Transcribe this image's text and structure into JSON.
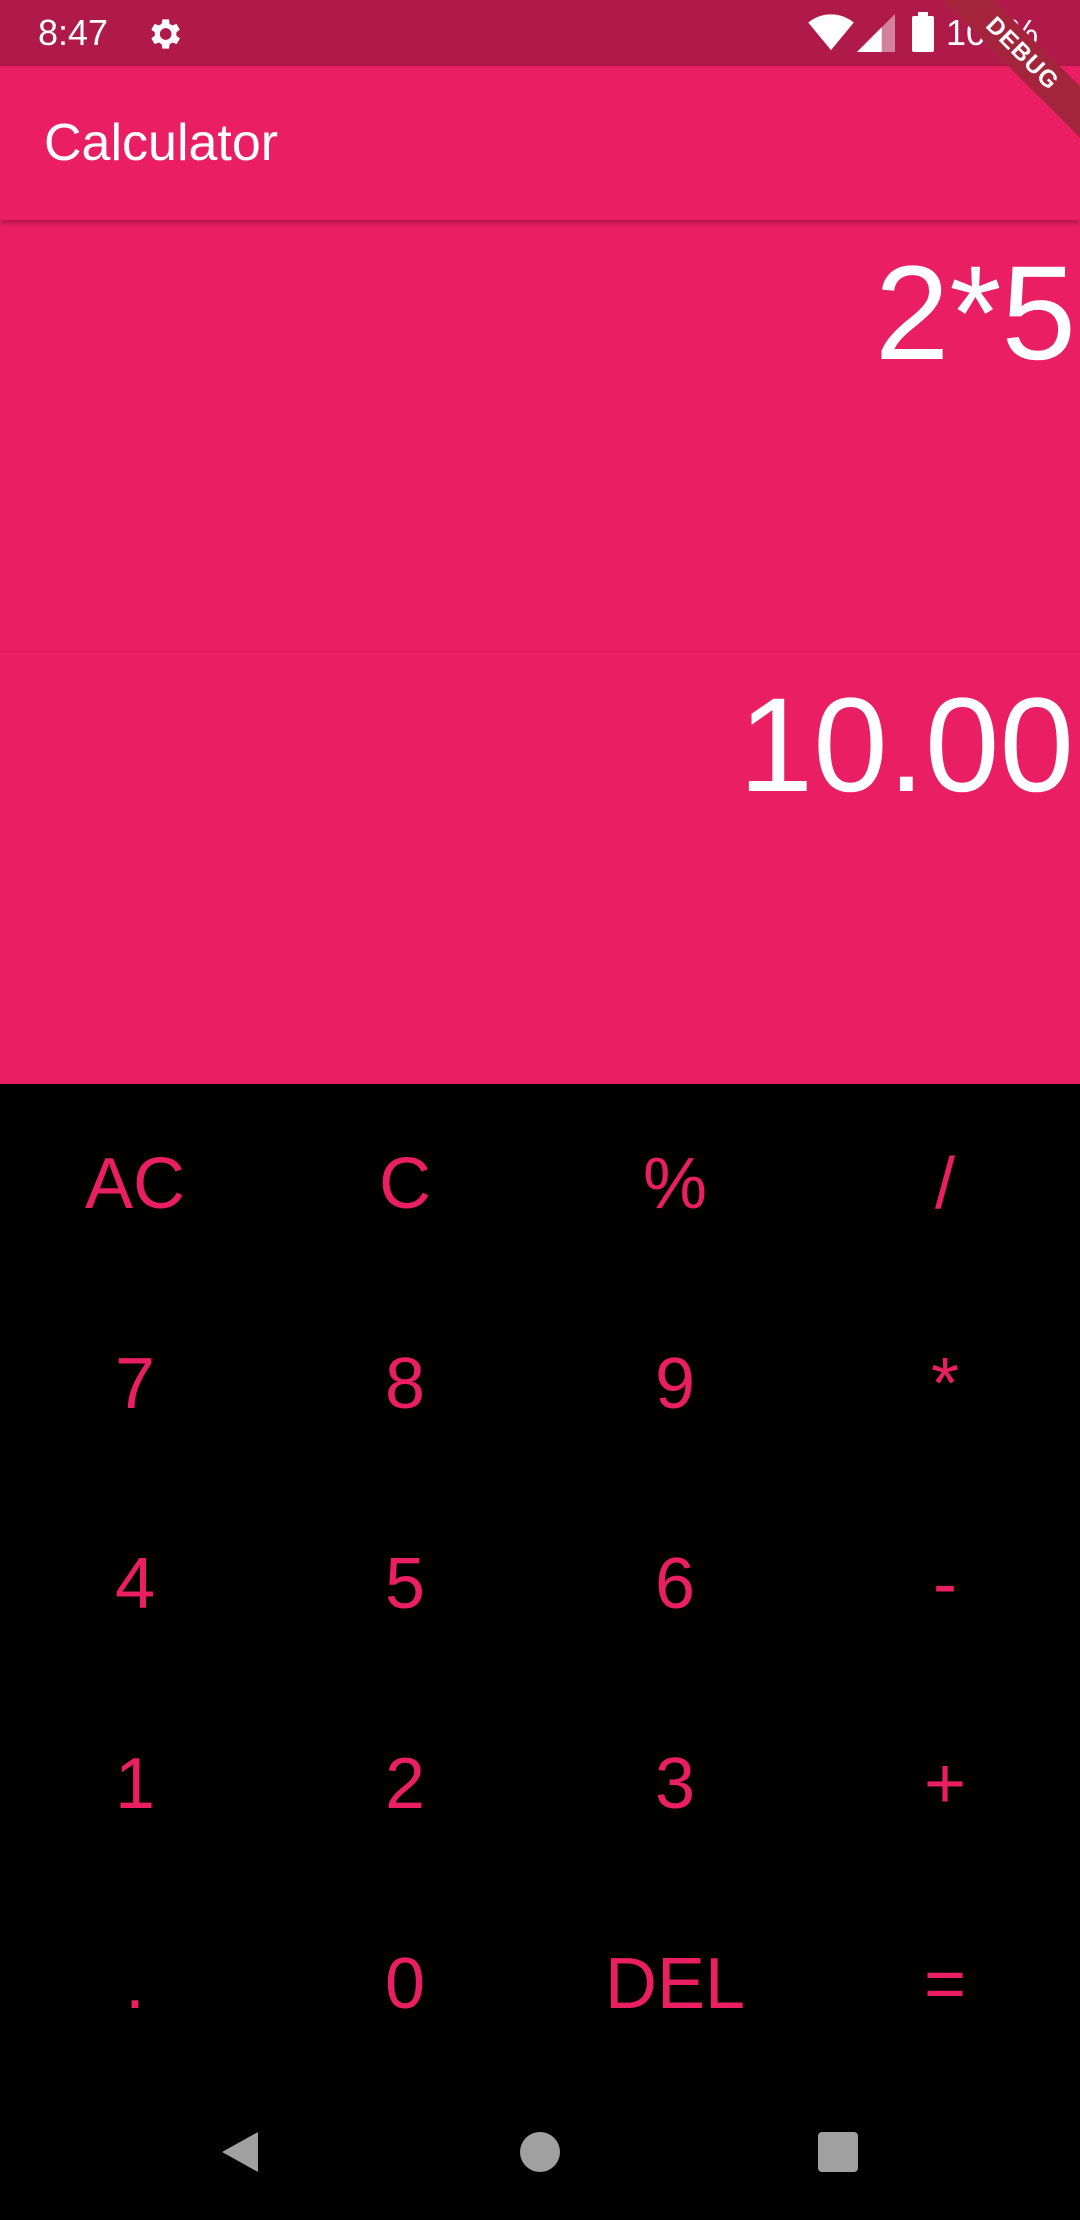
{
  "status_bar": {
    "time": "8:47",
    "battery": "100%",
    "settings_icon": "gear-icon",
    "wifi_icon": "wifi-icon",
    "signal_icon": "cellular-signal-icon",
    "battery_icon": "battery-full-icon"
  },
  "app_bar": {
    "title": "Calculator",
    "debug_banner": "DEBUG"
  },
  "display": {
    "expression": "2*5",
    "result": "10.00"
  },
  "keypad": {
    "rows": [
      [
        "AC",
        "C",
        "%",
        "/"
      ],
      [
        "7",
        "8",
        "9",
        "*"
      ],
      [
        "4",
        "5",
        "6",
        "-"
      ],
      [
        "1",
        "2",
        "3",
        "+"
      ],
      [
        ".",
        "0",
        "DEL",
        "="
      ]
    ]
  },
  "nav_bar": {
    "back_icon": "back-triangle-icon",
    "home_icon": "home-circle-icon",
    "recents_icon": "recents-square-icon"
  },
  "colors": {
    "accent": "#E91E63",
    "status_bar": "#B01A4B",
    "keypad_background": "#000000",
    "display_text": "#FFFFFF",
    "debug_banner": "#A4243B"
  }
}
